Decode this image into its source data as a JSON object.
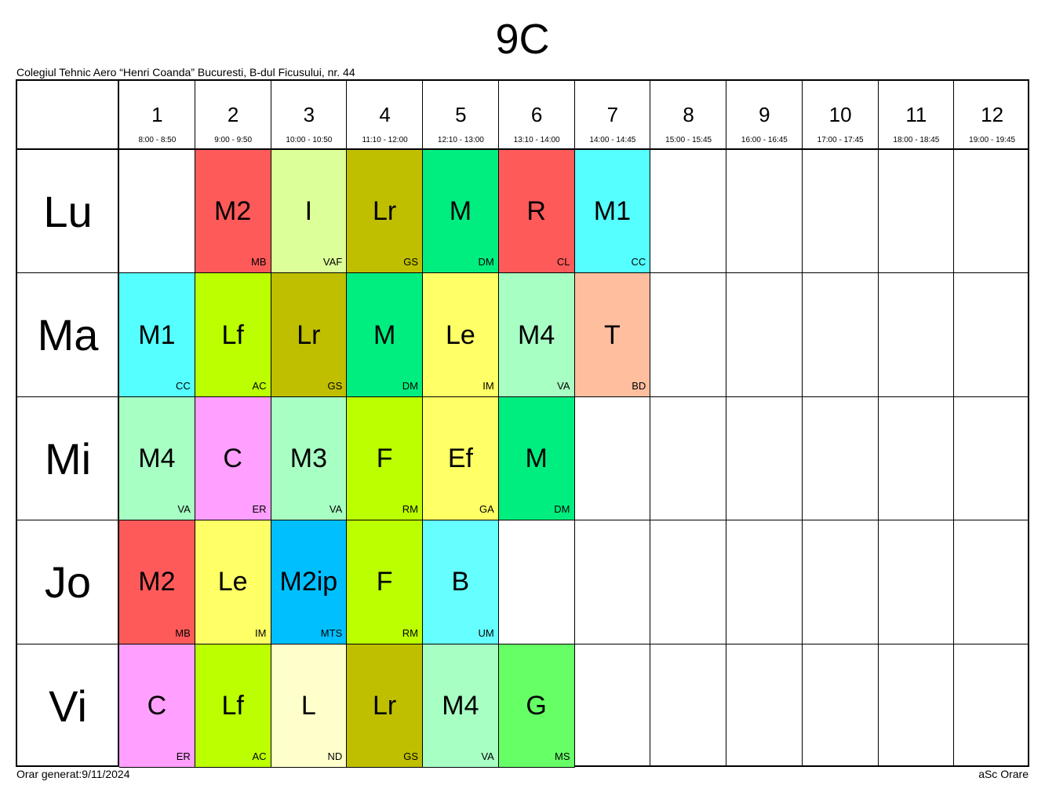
{
  "title": "9C",
  "school": "Colegiul Tehnic Aero “Henri Coanda” Bucuresti, B-dul Ficusului, nr. 44",
  "footer_left": "Orar generat:9/11/2024",
  "footer_right": "aSc Orare",
  "periods": [
    {
      "num": "1",
      "time": "8:00 - 8:50"
    },
    {
      "num": "2",
      "time": "9:00 - 9:50"
    },
    {
      "num": "3",
      "time": "10:00 - 10:50"
    },
    {
      "num": "4",
      "time": "11:10 - 12:00"
    },
    {
      "num": "5",
      "time": "12:10 - 13:00"
    },
    {
      "num": "6",
      "time": "13:10 - 14:00"
    },
    {
      "num": "7",
      "time": "14:00 - 14:45"
    },
    {
      "num": "8",
      "time": "15:00 - 15:45"
    },
    {
      "num": "9",
      "time": "16:00 - 16:45"
    },
    {
      "num": "10",
      "time": "17:00 - 17:45"
    },
    {
      "num": "11",
      "time": "18:00 - 18:45"
    },
    {
      "num": "12",
      "time": "19:00 - 19:45"
    }
  ],
  "days": [
    {
      "name": "Lu",
      "lessons": [
        null,
        {
          "subject": "M2",
          "teacher": "MB",
          "color": "#FF5A5A"
        },
        {
          "subject": "I",
          "teacher": "VAF",
          "color": "#DDFF99"
        },
        {
          "subject": "Lr",
          "teacher": "GS",
          "color": "#BFBF00"
        },
        {
          "subject": "M",
          "teacher": "DM",
          "color": "#00EE80"
        },
        {
          "subject": "R",
          "teacher": "CL",
          "color": "#FF5A5A"
        },
        {
          "subject": "M1",
          "teacher": "CC",
          "color": "#55FFFF"
        }
      ]
    },
    {
      "name": "Ma",
      "lessons": [
        {
          "subject": "M1",
          "teacher": "CC",
          "color": "#55FFFF"
        },
        {
          "subject": "Lf",
          "teacher": "AC",
          "color": "#BBFF00"
        },
        {
          "subject": "Lr",
          "teacher": "GS",
          "color": "#BFBF00"
        },
        {
          "subject": "M",
          "teacher": "DM",
          "color": "#00EE80"
        },
        {
          "subject": "Le",
          "teacher": "IM",
          "color": "#FFFF66"
        },
        {
          "subject": "M4",
          "teacher": "VA",
          "color": "#A8FFC4"
        },
        {
          "subject": "T",
          "teacher": "BD",
          "color": "#FFBF9F"
        }
      ]
    },
    {
      "name": "Mi",
      "lessons": [
        {
          "subject": "M4",
          "teacher": "VA",
          "color": "#A8FFC4"
        },
        {
          "subject": "C",
          "teacher": "ER",
          "color": "#FF9FFF"
        },
        {
          "subject": "M3",
          "teacher": "VA",
          "color": "#A8FFC4"
        },
        {
          "subject": "F",
          "teacher": "RM",
          "color": "#BBFF00"
        },
        {
          "subject": "Ef",
          "teacher": "GA",
          "color": "#FFFF66"
        },
        {
          "subject": "M",
          "teacher": "DM",
          "color": "#00EE80"
        }
      ]
    },
    {
      "name": "Jo",
      "lessons": [
        {
          "subject": "M2",
          "teacher": "MB",
          "color": "#FF5A5A"
        },
        {
          "subject": "Le",
          "teacher": "IM",
          "color": "#FFFF66"
        },
        {
          "subject": "M2ip",
          "teacher": "MTS",
          "color": "#00BFFF"
        },
        {
          "subject": "F",
          "teacher": "RM",
          "color": "#BBFF00"
        },
        {
          "subject": "B",
          "teacher": "UM",
          "color": "#66FFFF"
        }
      ]
    },
    {
      "name": "Vi",
      "lessons": [
        {
          "subject": "C",
          "teacher": "ER",
          "color": "#FF9FFF"
        },
        {
          "subject": "Lf",
          "teacher": "AC",
          "color": "#BBFF00"
        },
        {
          "subject": "L",
          "teacher": "ND",
          "color": "#FFFFCC"
        },
        {
          "subject": "Lr",
          "teacher": "GS",
          "color": "#BFBF00"
        },
        {
          "subject": "M4",
          "teacher": "VA",
          "color": "#A8FFC4"
        },
        {
          "subject": "G",
          "teacher": "MS",
          "color": "#66FF66"
        }
      ]
    }
  ]
}
